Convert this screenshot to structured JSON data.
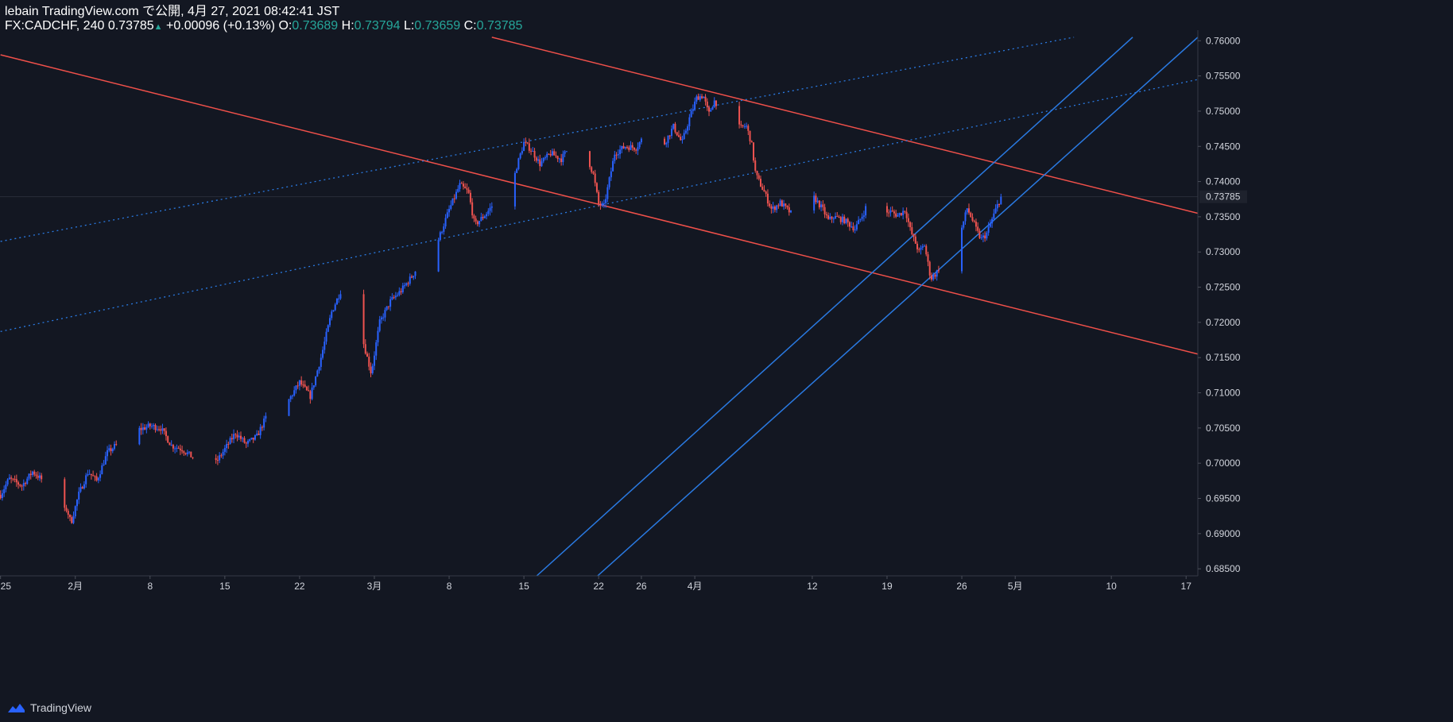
{
  "header": {
    "line1": "lebain TradingView.com で公開, 4月 27, 2021 08:42:41 JST",
    "symbol": "FX:CADCHF, 240",
    "last": "0.73785",
    "change": "+0.00096 (+0.13%)",
    "o_label": "O:",
    "o_value": "0.73689",
    "h_label": "H:",
    "h_value": "0.73794",
    "l_label": "L:",
    "l_value": "0.73659",
    "c_label": "C:",
    "c_value": "0.73785"
  },
  "footer": {
    "brand": "TradingView"
  },
  "colors": {
    "background": "#131722",
    "up": "#2962ff",
    "down": "#ef5350",
    "trend_red": "#f0504a",
    "trend_blue": "#2a7ae2",
    "axis_text": "#d1d4dc"
  },
  "chart_data": {
    "type": "candlestick",
    "symbol": "FX:CADCHF",
    "interval": "240",
    "ylim": [
      0.684,
      0.7615
    ],
    "y_ticks": [
      0.685,
      0.69,
      0.695,
      0.7,
      0.705,
      0.71,
      0.715,
      0.72,
      0.725,
      0.73,
      0.735,
      0.74,
      0.745,
      0.75,
      0.755,
      0.76
    ],
    "y_tick_labels": [
      "0.68500",
      "0.69000",
      "0.69500",
      "0.70000",
      "0.70500",
      "0.71000",
      "0.71500",
      "0.72000",
      "0.72500",
      "0.73000",
      "0.73500",
      "0.74000",
      "0.74500",
      "0.75000",
      "0.75500",
      "0.76000"
    ],
    "current_price_label": "0.73785",
    "current_price": 0.73785,
    "x_range_days": [
      -6.05,
      106.1
    ],
    "x_ticks": [
      {
        "label": "25",
        "day": -6
      },
      {
        "label": "2月",
        "day": 1
      },
      {
        "label": "8",
        "day": 8
      },
      {
        "label": "15",
        "day": 15
      },
      {
        "label": "22",
        "day": 22
      },
      {
        "label": "3月",
        "day": 29
      },
      {
        "label": "8",
        "day": 36
      },
      {
        "label": "15",
        "day": 43
      },
      {
        "label": "22",
        "day": 50
      },
      {
        "label": "26",
        "day": 54
      },
      {
        "label": "4月",
        "day": 59
      },
      {
        "label": "12",
        "day": 70
      },
      {
        "label": "19",
        "day": 77
      },
      {
        "label": "26",
        "day": 84
      },
      {
        "label": "5月",
        "day": 89
      },
      {
        "label": "10",
        "day": 98
      },
      {
        "label": "17",
        "day": 105
      }
    ],
    "day_origin_label": "2月",
    "anchors": [
      [
        -6.0,
        0.6955
      ],
      [
        -5.2,
        0.6978
      ],
      [
        -4.0,
        0.6968
      ],
      [
        -3.0,
        0.6988
      ],
      [
        -2.0,
        0.6975
      ],
      [
        -1.3,
        0.6948
      ],
      [
        -0.7,
        0.6925
      ],
      [
        0.2,
        0.6935
      ],
      [
        0.6,
        0.6915
      ],
      [
        1.3,
        0.6955
      ],
      [
        2.2,
        0.6988
      ],
      [
        3.0,
        0.6975
      ],
      [
        4.0,
        0.7015
      ],
      [
        5.0,
        0.7028
      ],
      [
        6.0,
        0.7045
      ],
      [
        7.0,
        0.7048
      ],
      [
        8.0,
        0.7053
      ],
      [
        9.0,
        0.705
      ],
      [
        10.0,
        0.7025
      ],
      [
        11.0,
        0.702
      ],
      [
        12.0,
        0.7008
      ],
      [
        13.0,
        0.7017
      ],
      [
        14.0,
        0.6997
      ],
      [
        15.0,
        0.702
      ],
      [
        16.0,
        0.7043
      ],
      [
        17.0,
        0.7027
      ],
      [
        18.0,
        0.7038
      ],
      [
        19.0,
        0.707
      ],
      [
        20.0,
        0.706
      ],
      [
        21.0,
        0.709
      ],
      [
        22.0,
        0.7115
      ],
      [
        23.0,
        0.7095
      ],
      [
        24.0,
        0.715
      ],
      [
        25.0,
        0.7215
      ],
      [
        26.0,
        0.725
      ],
      [
        26.8,
        0.7263
      ],
      [
        27.2,
        0.7188
      ],
      [
        28.0,
        0.717
      ],
      [
        28.7,
        0.7128
      ],
      [
        29.5,
        0.72
      ],
      [
        30.5,
        0.723
      ],
      [
        31.5,
        0.7245
      ],
      [
        32.5,
        0.7265
      ],
      [
        33.5,
        0.729
      ],
      [
        34.5,
        0.734
      ],
      [
        35.0,
        0.7318
      ],
      [
        36.0,
        0.736
      ],
      [
        37.0,
        0.7395
      ],
      [
        37.8,
        0.7385
      ],
      [
        38.4,
        0.7338
      ],
      [
        39.5,
        0.7355
      ],
      [
        40.5,
        0.7375
      ],
      [
        41.5,
        0.7365
      ],
      [
        42.3,
        0.742
      ],
      [
        43.0,
        0.7455
      ],
      [
        43.7,
        0.7445
      ],
      [
        44.5,
        0.7425
      ],
      [
        45.5,
        0.744
      ],
      [
        46.5,
        0.7432
      ],
      [
        47.5,
        0.7455
      ],
      [
        48.0,
        0.743
      ],
      [
        48.8,
        0.744
      ],
      [
        49.5,
        0.741
      ],
      [
        50.0,
        0.7368
      ],
      [
        50.5,
        0.7365
      ],
      [
        51.5,
        0.744
      ],
      [
        52.5,
        0.745
      ],
      [
        53.5,
        0.7448
      ],
      [
        54.5,
        0.747
      ],
      [
        55.0,
        0.749
      ],
      [
        55.5,
        0.7462
      ],
      [
        56.0,
        0.745
      ],
      [
        57.0,
        0.7478
      ],
      [
        57.8,
        0.7455
      ],
      [
        58.5,
        0.749
      ],
      [
        59.2,
        0.752
      ],
      [
        59.8,
        0.7522
      ],
      [
        60.3,
        0.7495
      ],
      [
        60.8,
        0.7515
      ],
      [
        61.4,
        0.7505
      ],
      [
        62.0,
        0.7488
      ],
      [
        62.6,
        0.751
      ],
      [
        63.2,
        0.7475
      ],
      [
        63.8,
        0.748
      ],
      [
        64.3,
        0.7455
      ],
      [
        64.7,
        0.741
      ],
      [
        65.5,
        0.7385
      ],
      [
        66.2,
        0.736
      ],
      [
        67.0,
        0.737
      ],
      [
        68.0,
        0.7355
      ],
      [
        69.0,
        0.7365
      ],
      [
        69.5,
        0.7385
      ],
      [
        70.3,
        0.7375
      ],
      [
        71.0,
        0.736
      ],
      [
        71.5,
        0.7345
      ],
      [
        72.0,
        0.735
      ],
      [
        73.0,
        0.7345
      ],
      [
        74.0,
        0.7333
      ],
      [
        74.8,
        0.7355
      ],
      [
        75.5,
        0.7382
      ],
      [
        76.0,
        0.7385
      ],
      [
        76.5,
        0.735
      ],
      [
        77.2,
        0.7358
      ],
      [
        78.0,
        0.7352
      ],
      [
        78.7,
        0.736
      ],
      [
        79.2,
        0.733
      ],
      [
        80.0,
        0.73
      ],
      [
        80.5,
        0.731
      ],
      [
        81.1,
        0.7262
      ],
      [
        81.6,
        0.727
      ],
      [
        82.2,
        0.7285
      ],
      [
        82.6,
        0.734
      ],
      [
        83.3,
        0.733
      ],
      [
        83.9,
        0.7328
      ],
      [
        84.5,
        0.7362
      ],
      [
        85.0,
        0.7345
      ],
      [
        85.4,
        0.733
      ],
      [
        85.8,
        0.7318
      ],
      [
        86.3,
        0.7325
      ],
      [
        86.8,
        0.7345
      ],
      [
        87.3,
        0.7365
      ],
      [
        87.7,
        0.73785
      ]
    ],
    "trendlines": [
      {
        "style": "solid",
        "color": "red",
        "points": [
          [
            -6.0,
            0.758
          ],
          [
            106.1,
            0.7155
          ]
        ]
      },
      {
        "style": "solid",
        "color": "red",
        "points": [
          [
            40.0,
            0.7605
          ],
          [
            106.1,
            0.7355
          ]
        ]
      },
      {
        "style": "solid",
        "color": "blue",
        "points": [
          [
            44.2,
            0.684
          ],
          [
            100.0,
            0.7605
          ]
        ]
      },
      {
        "style": "solid",
        "color": "blue",
        "points": [
          [
            49.9,
            0.684
          ],
          [
            106.1,
            0.7605
          ]
        ]
      },
      {
        "style": "dotted",
        "color": "blue",
        "points": [
          [
            -6.0,
            0.7315
          ],
          [
            94.5,
            0.7605
          ]
        ]
      },
      {
        "style": "dotted",
        "color": "blue",
        "points": [
          [
            -6.0,
            0.7187
          ],
          [
            106.1,
            0.7545
          ]
        ]
      }
    ]
  }
}
